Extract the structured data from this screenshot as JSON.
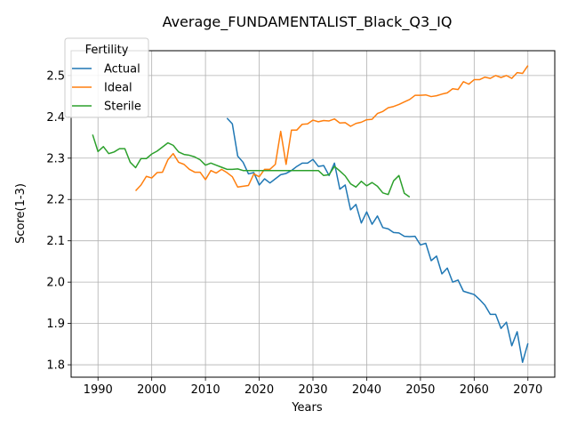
{
  "chart_data": {
    "type": "line",
    "title": "Average_FUNDAMENTALIST_Black_Q3_IQ",
    "xlabel": "Years",
    "ylabel": "Score(1-3)",
    "xlim": [
      1985,
      2075
    ],
    "ylim": [
      1.77,
      2.56
    ],
    "xticks": [
      1990,
      2000,
      2010,
      2020,
      2030,
      2040,
      2050,
      2060,
      2070
    ],
    "yticks": [
      1.8,
      1.9,
      2.0,
      2.1,
      2.2,
      2.3,
      2.4,
      2.5
    ],
    "grid": true,
    "legend": {
      "title": "Fertility",
      "placement": "top-left"
    },
    "series": [
      {
        "name": "Actual",
        "color": "#1f77b4",
        "x": [
          2014,
          2015,
          2016,
          2017,
          2018,
          2019,
          2020,
          2021,
          2022,
          2023,
          2024,
          2025,
          2026,
          2027,
          2028,
          2029,
          2030,
          2031,
          2032,
          2033,
          2034,
          2035,
          2036,
          2037,
          2038,
          2039,
          2040,
          2041,
          2042,
          2043,
          2044,
          2045,
          2046,
          2047,
          2048,
          2049,
          2050,
          2051,
          2052,
          2053,
          2054,
          2055,
          2056,
          2057,
          2058,
          2059,
          2060,
          2061,
          2062,
          2063,
          2064,
          2065,
          2066,
          2067,
          2068,
          2069,
          2070
        ],
        "values": [
          2.397,
          2.383,
          2.305,
          2.29,
          2.262,
          2.265,
          2.235,
          2.25,
          2.24,
          2.25,
          2.26,
          2.263,
          2.27,
          2.28,
          2.288,
          2.288,
          2.297,
          2.28,
          2.282,
          2.258,
          2.288,
          2.225,
          2.235,
          2.175,
          2.188,
          2.143,
          2.17,
          2.14,
          2.16,
          2.132,
          2.129,
          2.12,
          2.119,
          2.111,
          2.11,
          2.111,
          2.09,
          2.094,
          2.052,
          2.063,
          2.02,
          2.034,
          2.0,
          2.005,
          1.978,
          1.974,
          1.97,
          1.958,
          1.944,
          1.922,
          1.922,
          1.888,
          1.903,
          1.846,
          1.88,
          1.806,
          1.852
        ]
      },
      {
        "name": "Ideal",
        "color": "#ff7f0e",
        "x": [
          1997,
          1998,
          1999,
          2000,
          2001,
          2002,
          2003,
          2004,
          2005,
          2006,
          2007,
          2008,
          2009,
          2010,
          2011,
          2012,
          2013,
          2014,
          2015,
          2016,
          2017,
          2018,
          2019,
          2020,
          2021,
          2022,
          2023,
          2024,
          2025,
          2026,
          2027,
          2028,
          2029,
          2030,
          2031,
          2032,
          2033,
          2034,
          2035,
          2036,
          2037,
          2038,
          2039,
          2040,
          2041,
          2042,
          2043,
          2044,
          2045,
          2046,
          2047,
          2048,
          2049,
          2050,
          2051,
          2052,
          2053,
          2054,
          2055,
          2056,
          2057,
          2058,
          2059,
          2060,
          2061,
          2062,
          2063,
          2064,
          2065,
          2066,
          2067,
          2068,
          2069,
          2070
        ],
        "values": [
          2.221,
          2.235,
          2.256,
          2.252,
          2.265,
          2.266,
          2.296,
          2.311,
          2.29,
          2.285,
          2.273,
          2.266,
          2.266,
          2.248,
          2.27,
          2.264,
          2.273,
          2.265,
          2.255,
          2.23,
          2.232,
          2.234,
          2.262,
          2.255,
          2.273,
          2.273,
          2.285,
          2.365,
          2.285,
          2.368,
          2.368,
          2.382,
          2.383,
          2.392,
          2.388,
          2.391,
          2.39,
          2.395,
          2.385,
          2.386,
          2.377,
          2.384,
          2.387,
          2.393,
          2.394,
          2.408,
          2.413,
          2.422,
          2.425,
          2.43,
          2.436,
          2.442,
          2.452,
          2.452,
          2.453,
          2.449,
          2.451,
          2.455,
          2.458,
          2.468,
          2.466,
          2.485,
          2.479,
          2.49,
          2.49,
          2.496,
          2.493,
          2.5,
          2.495,
          2.5,
          2.493,
          2.507,
          2.505,
          2.524
        ]
      },
      {
        "name": "Sterile",
        "color": "#2ca02c",
        "x": [
          1989,
          1990,
          1991,
          1992,
          1993,
          1994,
          1995,
          1996,
          1997,
          1998,
          1999,
          2000,
          2001,
          2002,
          2003,
          2004,
          2005,
          2006,
          2007,
          2008,
          2009,
          2010,
          2011,
          2012,
          2013,
          2014,
          2015,
          2016,
          2017,
          2018,
          2019,
          2020,
          2021,
          2022,
          2023,
          2024,
          2025,
          2026,
          2027,
          2028,
          2029,
          2030,
          2031,
          2032,
          2033,
          2034,
          2035,
          2036,
          2037,
          2038,
          2039,
          2040,
          2041,
          2042,
          2043,
          2044,
          2045,
          2046,
          2047,
          2048
        ],
        "values": [
          2.357,
          2.316,
          2.328,
          2.311,
          2.315,
          2.323,
          2.323,
          2.29,
          2.277,
          2.299,
          2.299,
          2.31,
          2.317,
          2.327,
          2.337,
          2.331,
          2.315,
          2.309,
          2.307,
          2.303,
          2.296,
          2.283,
          2.288,
          2.283,
          2.278,
          2.273,
          2.273,
          2.274,
          2.27,
          2.27,
          2.27,
          2.27,
          2.27,
          2.27,
          2.27,
          2.27,
          2.27,
          2.27,
          2.27,
          2.27,
          2.27,
          2.27,
          2.27,
          2.258,
          2.26,
          2.28,
          2.269,
          2.257,
          2.238,
          2.23,
          2.244,
          2.233,
          2.241,
          2.232,
          2.216,
          2.212,
          2.245,
          2.258,
          2.215,
          2.206
        ]
      }
    ]
  }
}
